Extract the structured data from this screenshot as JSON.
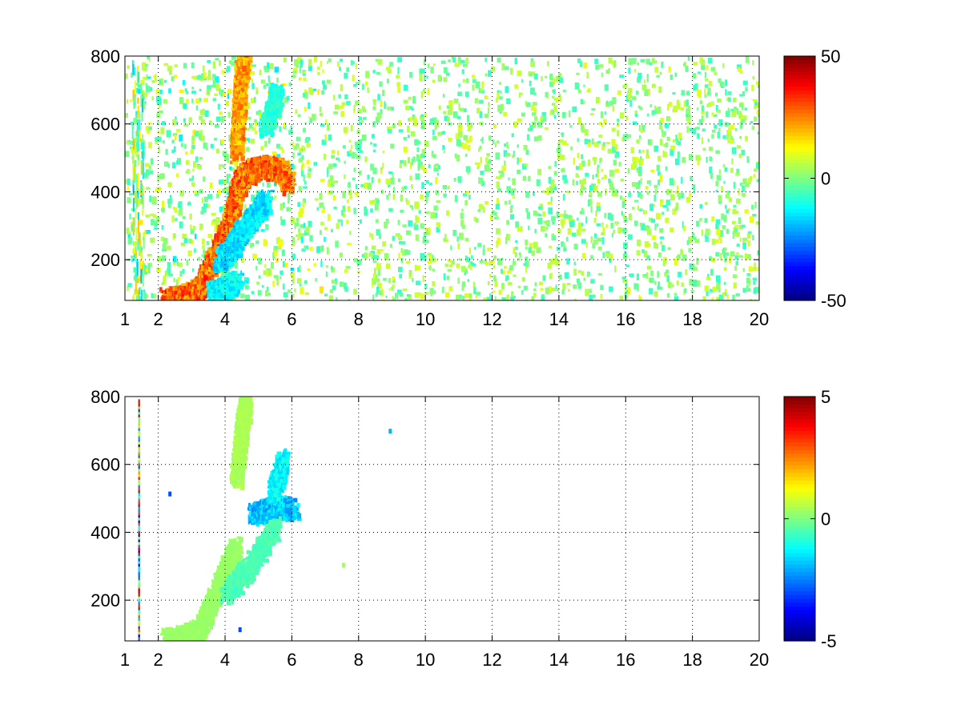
{
  "chart_data": [
    {
      "type": "heatmap",
      "title": "",
      "xlabel": "",
      "ylabel": "",
      "xlim": [
        1,
        20
      ],
      "ylim": [
        80,
        800
      ],
      "x_ticks": [
        1,
        2,
        4,
        6,
        8,
        10,
        12,
        14,
        16,
        18,
        20
      ],
      "x_tick_labels": [
        "1",
        "2",
        "4",
        "6",
        "8",
        "10",
        "12",
        "14",
        "16",
        "18",
        "20"
      ],
      "y_ticks": [
        200,
        400,
        600,
        800
      ],
      "y_tick_labels": [
        "200",
        "400",
        "600",
        "800"
      ],
      "grid": true,
      "colormap": "jet",
      "colorbar": {
        "min": -50,
        "max": 50,
        "ticks": [
          50,
          0,
          -50
        ],
        "tick_labels": [
          "50",
          "0",
          "-50"
        ]
      },
      "ridges": [
        {
          "points": [
            [
              2.2,
              90
            ],
            [
              2.8,
              100
            ],
            [
              3.2,
              120
            ],
            [
              3.5,
              180
            ],
            [
              3.8,
              250
            ],
            [
              4.1,
              320
            ],
            [
              4.3,
              400
            ],
            [
              4.5,
              450
            ],
            [
              4.8,
              470
            ],
            [
              5.2,
              480
            ],
            [
              5.6,
              470
            ],
            [
              5.9,
              430
            ]
          ],
          "value": 32
        },
        {
          "points": [
            [
              4.3,
              520
            ],
            [
              4.35,
              600
            ],
            [
              4.4,
              680
            ],
            [
              4.45,
              760
            ],
            [
              4.55,
              800
            ]
          ],
          "value": 26
        },
        {
          "points": [
            [
              3.8,
              200
            ],
            [
              4.1,
              230
            ],
            [
              4.4,
              280
            ],
            [
              4.8,
              330
            ],
            [
              5.2,
              380
            ]
          ],
          "value": -18
        },
        {
          "points": [
            [
              5.2,
              600
            ],
            [
              5.4,
              650
            ],
            [
              5.5,
              700
            ]
          ],
          "value": -10
        },
        {
          "points": [
            [
              3.6,
              110
            ],
            [
              4.0,
              120
            ],
            [
              4.3,
              140
            ]
          ],
          "value": -15
        }
      ],
      "noise_x_range": [
        1,
        20
      ],
      "noise_value_range": [
        -8,
        10
      ]
    },
    {
      "type": "heatmap",
      "title": "",
      "xlabel": "",
      "ylabel": "",
      "xlim": [
        1,
        20
      ],
      "ylim": [
        80,
        800
      ],
      "x_ticks": [
        1,
        2,
        4,
        6,
        8,
        10,
        12,
        14,
        16,
        18,
        20
      ],
      "x_tick_labels": [
        "1",
        "2",
        "4",
        "6",
        "8",
        "10",
        "12",
        "14",
        "16",
        "18",
        "20"
      ],
      "y_ticks": [
        200,
        400,
        600,
        800
      ],
      "y_tick_labels": [
        "200",
        "400",
        "600",
        "800"
      ],
      "grid": true,
      "colormap": "jet",
      "colorbar": {
        "min": -5,
        "max": 5,
        "ticks": [
          5,
          0,
          -5
        ],
        "tick_labels": [
          "5",
          "0",
          "-5"
        ]
      },
      "ridges": [
        {
          "points": [
            [
              2.2,
              90
            ],
            [
              2.8,
              100
            ],
            [
              3.2,
              120
            ],
            [
              3.5,
              180
            ],
            [
              3.8,
              250
            ],
            [
              4.1,
              320
            ],
            [
              4.3,
              360
            ]
          ],
          "value": 0.3
        },
        {
          "points": [
            [
              4.3,
              560
            ],
            [
              4.4,
              650
            ],
            [
              4.5,
              740
            ],
            [
              4.6,
              790
            ]
          ],
          "value": 0.5
        },
        {
          "points": [
            [
              4.8,
              460
            ],
            [
              5.2,
              470
            ],
            [
              5.6,
              480
            ],
            [
              6.0,
              470
            ]
          ],
          "value": -2.2
        },
        {
          "points": [
            [
              5.4,
              520
            ],
            [
              5.6,
              580
            ],
            [
              5.7,
              620
            ]
          ],
          "value": -1.5
        },
        {
          "points": [
            [
              4.0,
              220
            ],
            [
              4.5,
              280
            ],
            [
              5.0,
              350
            ],
            [
              5.5,
              420
            ]
          ],
          "value": -0.6
        }
      ],
      "isolated_points": [
        [
          8.9,
          705,
          -2
        ],
        [
          7.5,
          310,
          0.3
        ],
        [
          2.3,
          520,
          -3
        ],
        [
          4.4,
          120,
          -3
        ]
      ],
      "edge_column": {
        "x": 1.4,
        "y_range": [
          80,
          790
        ]
      }
    }
  ]
}
